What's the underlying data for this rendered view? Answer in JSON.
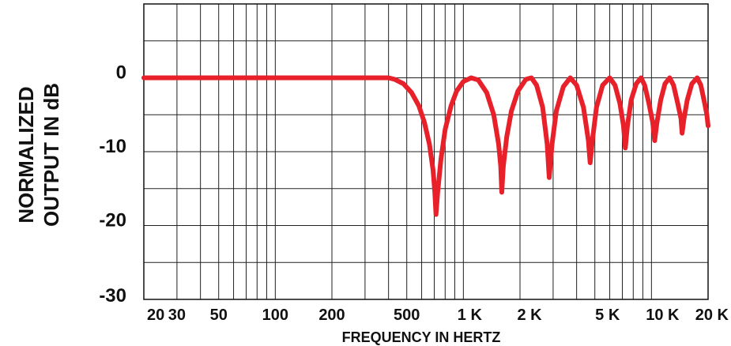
{
  "chart_data": {
    "type": "line",
    "xlabel": "FREQUENCY IN HERTZ",
    "ylabel_lines": [
      "NORMALIZED",
      "OUTPUT IN dB"
    ],
    "x_scale": "log",
    "xlim": [
      20,
      20000
    ],
    "ylim": [
      -30,
      10
    ],
    "grid": true,
    "x_ticks": [
      {
        "value": 20,
        "label": "20"
      },
      {
        "value": 30,
        "label": "30"
      },
      {
        "value": 50,
        "label": "50"
      },
      {
        "value": 100,
        "label": "100"
      },
      {
        "value": 200,
        "label": "200"
      },
      {
        "value": 500,
        "label": "500"
      },
      {
        "value": 1000,
        "label": "1 K"
      },
      {
        "value": 2000,
        "label": "2 K"
      },
      {
        "value": 5000,
        "label": "5 K"
      },
      {
        "value": 10000,
        "label": "10 K"
      },
      {
        "value": 20000,
        "label": "20 K"
      }
    ],
    "y_ticks": [
      {
        "value": 0,
        "label": "0"
      },
      {
        "value": -10,
        "label": "-10"
      },
      {
        "value": -20,
        "label": "-20"
      },
      {
        "value": -30,
        "label": "-30"
      }
    ],
    "series": [
      {
        "color": "#e8202a",
        "points": [
          [
            20,
            0
          ],
          [
            400,
            0
          ],
          [
            430,
            -0.2
          ],
          [
            480,
            -0.8
          ],
          [
            530,
            -2
          ],
          [
            580,
            -3.8
          ],
          [
            620,
            -6
          ],
          [
            660,
            -9
          ],
          [
            690,
            -12.5
          ],
          [
            705,
            -15.5
          ],
          [
            715,
            -18.5
          ],
          [
            730,
            -15.5
          ],
          [
            760,
            -11
          ],
          [
            800,
            -7
          ],
          [
            860,
            -3.8
          ],
          [
            920,
            -1.8
          ],
          [
            1000,
            -0.5
          ],
          [
            1100,
            0
          ],
          [
            1200,
            -0.3
          ],
          [
            1330,
            -2
          ],
          [
            1450,
            -5
          ],
          [
            1540,
            -9
          ],
          [
            1580,
            -12
          ],
          [
            1600,
            -15.5
          ],
          [
            1630,
            -12
          ],
          [
            1700,
            -8
          ],
          [
            1800,
            -4.5
          ],
          [
            1950,
            -1.8
          ],
          [
            2150,
            -0.2
          ],
          [
            2300,
            0
          ],
          [
            2450,
            -1
          ],
          [
            2640,
            -4
          ],
          [
            2790,
            -9
          ],
          [
            2860,
            -13.5
          ],
          [
            2960,
            -9
          ],
          [
            3120,
            -4.5
          ],
          [
            3400,
            -1.2
          ],
          [
            3700,
            0
          ],
          [
            4000,
            -1
          ],
          [
            4350,
            -4
          ],
          [
            4620,
            -8.5
          ],
          [
            4720,
            -11.5
          ],
          [
            4850,
            -8.5
          ],
          [
            5100,
            -4
          ],
          [
            5500,
            -1
          ],
          [
            6000,
            0
          ],
          [
            6400,
            -1
          ],
          [
            6800,
            -3.5
          ],
          [
            7100,
            -6.5
          ],
          [
            7260,
            -9.5
          ],
          [
            7450,
            -6.5
          ],
          [
            7800,
            -3
          ],
          [
            8300,
            -0.8
          ],
          [
            8800,
            0
          ],
          [
            9200,
            -1
          ],
          [
            9700,
            -3.5
          ],
          [
            10150,
            -6
          ],
          [
            10400,
            -8.5
          ],
          [
            10700,
            -6
          ],
          [
            11200,
            -3
          ],
          [
            11800,
            -0.8
          ],
          [
            12500,
            0
          ],
          [
            13100,
            -1
          ],
          [
            13800,
            -3.5
          ],
          [
            14350,
            -5.5
          ],
          [
            14550,
            -7.5
          ],
          [
            14900,
            -5.5
          ],
          [
            15500,
            -3
          ],
          [
            16400,
            -0.8
          ],
          [
            17500,
            0
          ],
          [
            18300,
            -1
          ],
          [
            19200,
            -3.5
          ],
          [
            19700,
            -5
          ],
          [
            20000,
            -6.5
          ]
        ]
      }
    ]
  }
}
